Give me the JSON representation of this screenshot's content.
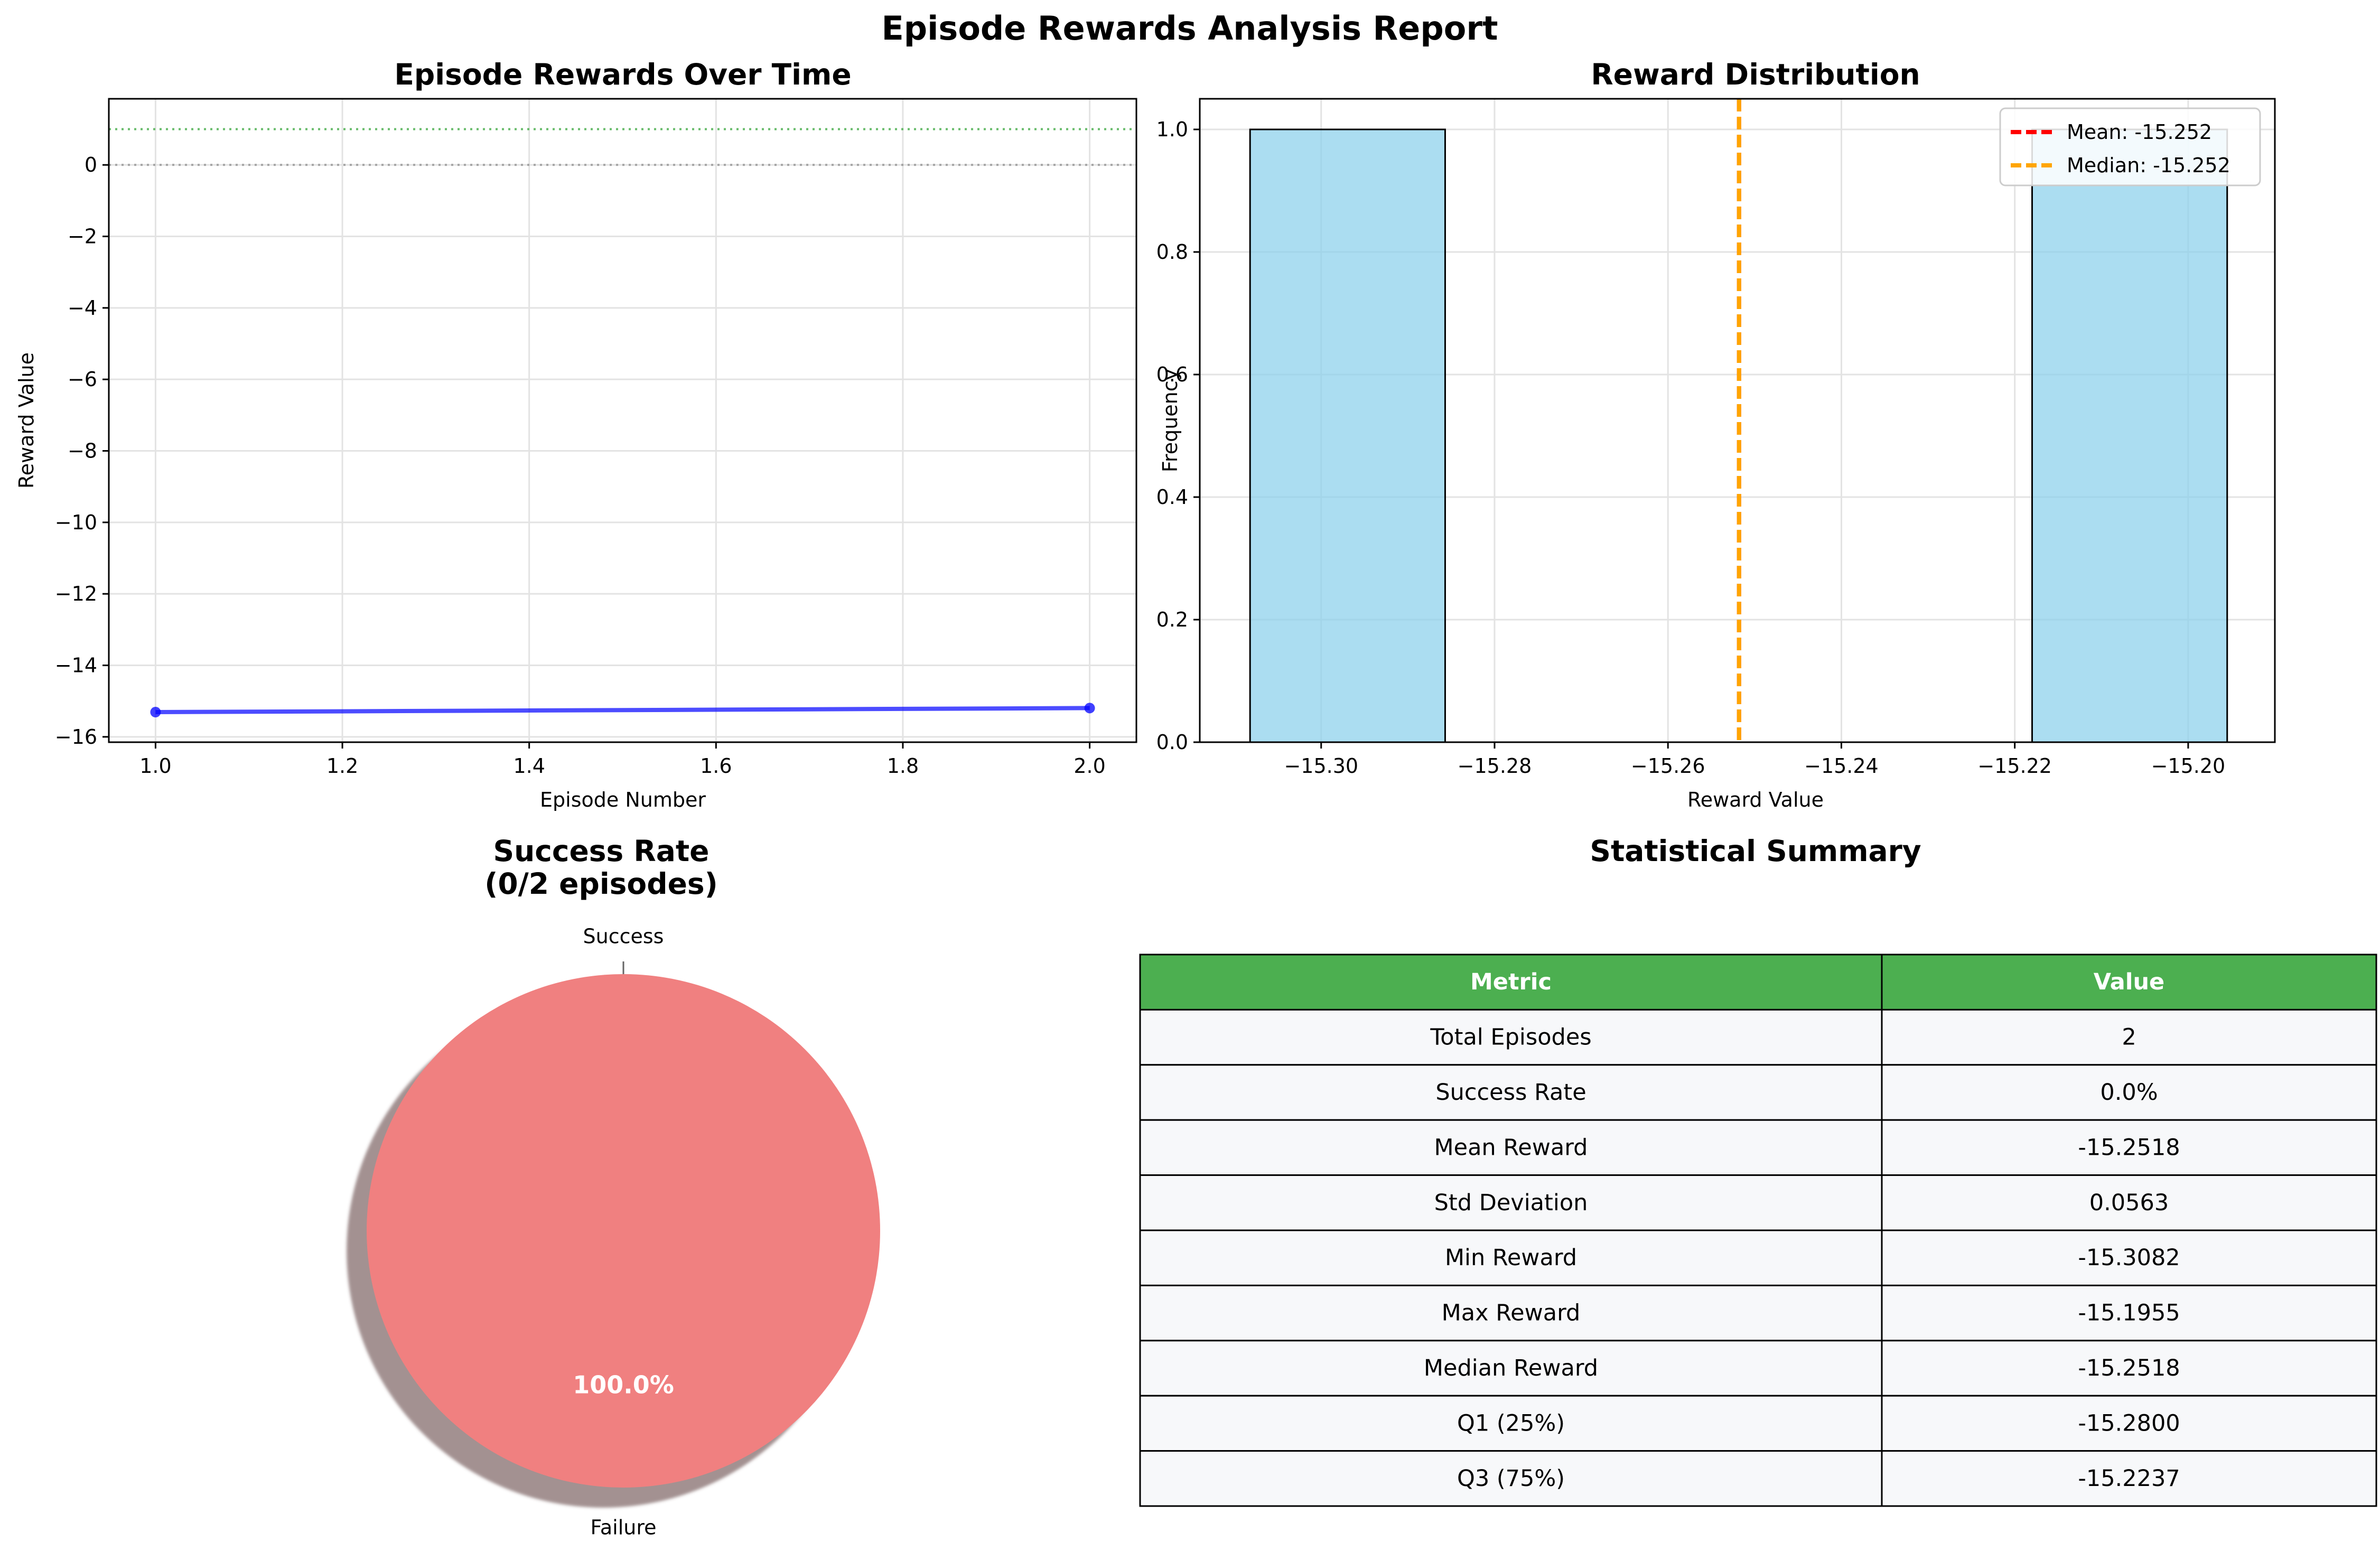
{
  "suptitle": "Episode Rewards Analysis Report",
  "colors": {
    "line": "#0000ff",
    "hist_bar": "#87ceeb",
    "mean_line": "#ff0000",
    "median_line": "#ffa500",
    "success_ref_line": "#4caf50",
    "zero_ref_line": "#999999",
    "pie_success": "#90ee90",
    "pie_failure": "#f08080",
    "table_header": "#4caf50",
    "table_row": "#f7f8fa"
  },
  "chart_data": [
    {
      "type": "line",
      "title": "Episode Rewards Over Time",
      "xlabel": "Episode Number",
      "ylabel": "Reward Value",
      "x": [
        1,
        2
      ],
      "y": [
        -15.3082,
        -15.1955
      ],
      "xlim": [
        0.95,
        2.05
      ],
      "ylim": [
        -16.15,
        1.85
      ],
      "xticks": [
        1.0,
        1.2,
        1.4,
        1.6,
        1.8,
        2.0
      ],
      "xtick_labels": [
        "1.0",
        "1.2",
        "1.4",
        "1.6",
        "1.8",
        "2.0"
      ],
      "yticks": [
        0,
        -2,
        -4,
        -6,
        -8,
        -10,
        -12,
        -14,
        -16
      ],
      "ytick_labels": [
        "0",
        "−2",
        "−4",
        "−6",
        "−8",
        "−10",
        "−12",
        "−14",
        "−16"
      ],
      "reference_lines": [
        {
          "y": 1,
          "style": "dotted",
          "color": "#4caf50"
        },
        {
          "y": 0,
          "style": "dotted",
          "color": "#999999"
        }
      ],
      "grid": true
    },
    {
      "type": "bar",
      "subtype": "histogram",
      "title": "Reward Distribution",
      "xlabel": "Reward Value",
      "ylabel": "Frequency",
      "bins": [
        {
          "start": -15.3082,
          "end": -15.2857,
          "count": 1
        },
        {
          "start": -15.218,
          "end": -15.1955,
          "count": 1
        }
      ],
      "xlim": [
        -15.314,
        -15.19
      ],
      "ylim": [
        0,
        1.05
      ],
      "xticks": [
        -15.3,
        -15.28,
        -15.26,
        -15.24,
        -15.22,
        -15.2
      ],
      "xtick_labels": [
        "−15.30",
        "−15.28",
        "−15.26",
        "−15.24",
        "−15.22",
        "−15.20"
      ],
      "yticks": [
        0.0,
        0.2,
        0.4,
        0.6,
        0.8,
        1.0
      ],
      "ytick_labels": [
        "0.0",
        "0.2",
        "0.4",
        "0.6",
        "0.8",
        "1.0"
      ],
      "vlines": [
        {
          "x": -15.2518,
          "label": "Mean: -15.252",
          "color": "#ff0000"
        },
        {
          "x": -15.2518,
          "label": "Median: -15.252",
          "color": "#ffa500"
        }
      ],
      "legend": "top-right",
      "grid": true
    },
    {
      "type": "pie",
      "title": "Success Rate",
      "subtitle": "(0/2 episodes)",
      "slices": [
        {
          "label": "Success",
          "value": 0,
          "pct_label": "0.0%"
        },
        {
          "label": "Failure",
          "value": 2,
          "pct_label": "100.0%"
        }
      ],
      "shadow": true
    },
    {
      "type": "table",
      "title": "Statistical Summary",
      "columns": [
        "Metric",
        "Value"
      ],
      "rows": [
        [
          "Total Episodes",
          "2"
        ],
        [
          "Success Rate",
          "0.0%"
        ],
        [
          "Mean Reward",
          "-15.2518"
        ],
        [
          "Std Deviation",
          "0.0563"
        ],
        [
          "Min Reward",
          "-15.3082"
        ],
        [
          "Max Reward",
          "-15.1955"
        ],
        [
          "Median Reward",
          "-15.2518"
        ],
        [
          "Q1 (25%)",
          "-15.2800"
        ],
        [
          "Q3 (75%)",
          "-15.2237"
        ]
      ]
    }
  ]
}
